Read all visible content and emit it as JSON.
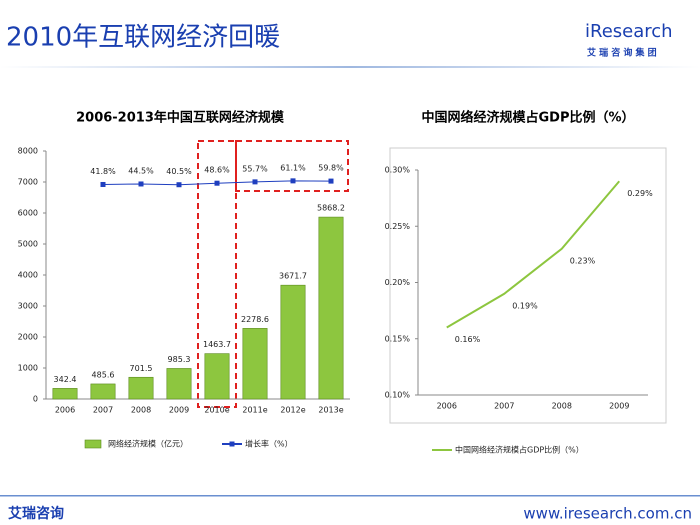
{
  "header": {
    "title": "2010年互联网经济回暖",
    "logo": "iResearch",
    "logo_sub": "艾 瑞 咨 询 集 团"
  },
  "footer": {
    "left": "艾瑞咨询",
    "right": "www.iresearch.com.cn"
  },
  "chart_data": [
    {
      "type": "bar",
      "title": "2006-2013年中国互联网经济规模",
      "categories": [
        "2006",
        "2007",
        "2008",
        "2009",
        "2010e",
        "2011e",
        "2012e",
        "2013e"
      ],
      "series": [
        {
          "name": "网络经济规模（亿元）",
          "type": "bar",
          "color": "#8dc63f",
          "values": [
            342.4,
            485.6,
            701.5,
            985.3,
            1463.7,
            2278.6,
            3671.7,
            5868.2
          ]
        },
        {
          "name": "增长率（%）",
          "type": "line",
          "axis": "y2",
          "color": "#1f3fbf",
          "values": [
            null,
            41.8,
            44.5,
            40.5,
            48.6,
            55.7,
            61.1,
            59.8
          ],
          "value_labels": [
            null,
            "41.8%",
            "44.5%",
            "40.5%",
            "48.6%",
            "55.7%",
            "61.1%",
            "59.8%"
          ]
        }
      ],
      "ylim": [
        0,
        8000
      ],
      "yticks": [
        0,
        1000,
        2000,
        3000,
        4000,
        5000,
        6000,
        7000,
        8000
      ],
      "y2lim": [
        -1100,
        220
      ],
      "legend": "bottom"
    },
    {
      "type": "line",
      "title": "中国网络经济规模占GDP比例（%）",
      "categories": [
        "2006",
        "2007",
        "2008",
        "2009"
      ],
      "series": [
        {
          "name": "中国网络经济规模占GDP比例（%）",
          "type": "line",
          "color": "#8dc63f",
          "values": [
            0.16,
            0.19,
            0.23,
            0.29
          ],
          "value_labels": [
            "0.16%",
            "0.19%",
            "0.23%",
            "0.29%"
          ]
        }
      ],
      "ylim": [
        0.1,
        0.3
      ],
      "yticks": [
        {
          "value": 0.1,
          "label": "0.10%"
        },
        {
          "value": 0.15,
          "label": "0.15%"
        },
        {
          "value": 0.2,
          "label": "0.20%"
        },
        {
          "value": 0.25,
          "label": "0.25%"
        },
        {
          "value": 0.3,
          "label": "0.30%"
        }
      ],
      "legend": "bottom"
    }
  ]
}
